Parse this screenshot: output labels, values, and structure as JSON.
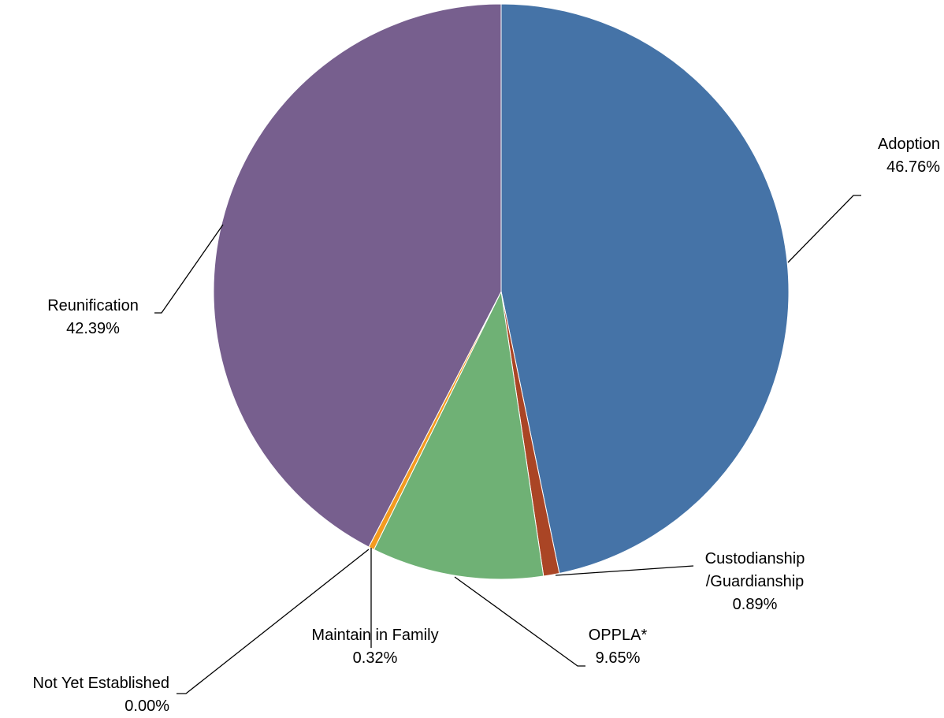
{
  "chart_data": {
    "type": "pie",
    "title": "",
    "slices": [
      {
        "label": "Adoption",
        "pct_text": "46.76%",
        "value": 46.76,
        "color": "#4573A7"
      },
      {
        "label": "Custodianship /Guardianship",
        "label_lines": [
          "Custodianship",
          "/Guardianship"
        ],
        "pct_text": "0.89%",
        "value": 0.89,
        "color": "#AA4525"
      },
      {
        "label": "OPPLA*",
        "pct_text": "9.65%",
        "value": 9.65,
        "color": "#6FB175"
      },
      {
        "label": "Maintain in Family",
        "pct_text": "0.32%",
        "value": 0.32,
        "color": "#F39B1F"
      },
      {
        "label": "Not Yet Established",
        "pct_text": "0.00%",
        "value": 0.0,
        "color": "#5B9BD5"
      },
      {
        "label": "Reunification",
        "pct_text": "42.39%",
        "value": 42.39,
        "color": "#775F8E"
      }
    ],
    "start_angle": "12 o'clock",
    "direction": "clockwise",
    "legend": "none",
    "data_labels": "outside with leader lines"
  }
}
